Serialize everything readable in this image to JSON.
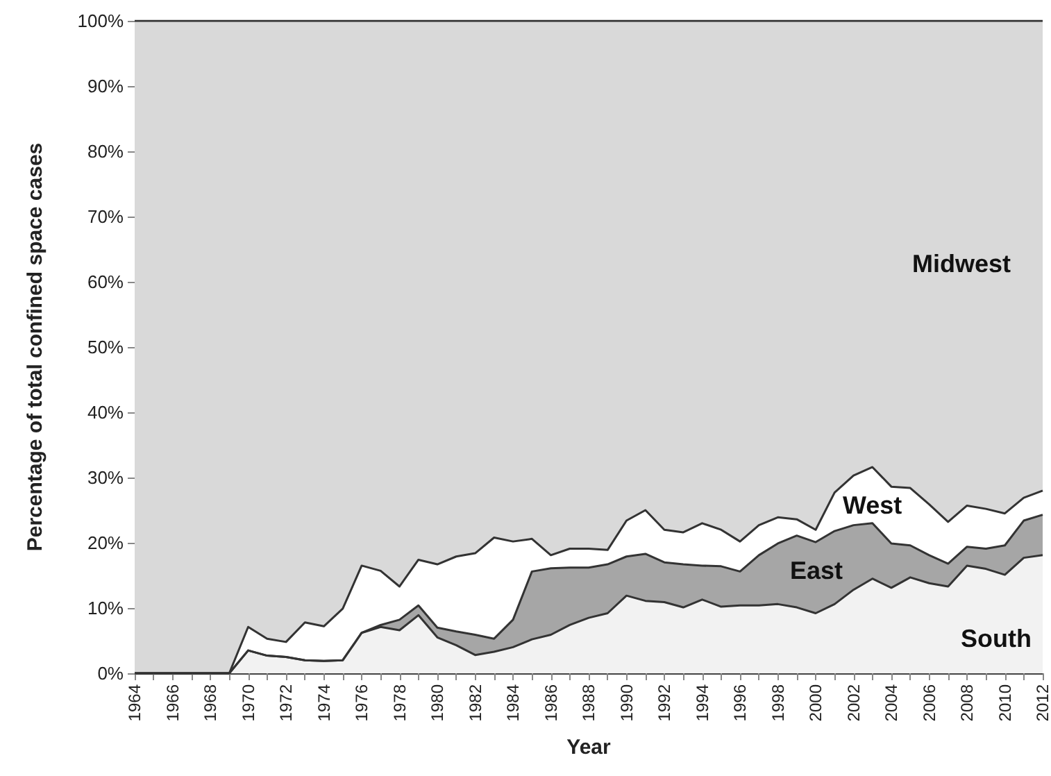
{
  "chart_data": {
    "type": "area",
    "stacked": true,
    "xlabel": "Year",
    "ylabel": "Percentage of total confined space cases",
    "categories": [
      "1964",
      null,
      "1966",
      null,
      "1968",
      null,
      "1970",
      null,
      "1972",
      null,
      "1974",
      null,
      "1976",
      null,
      "1978",
      null,
      "1980",
      null,
      "1982",
      null,
      "1984",
      null,
      "1986",
      null,
      "1988",
      null,
      "1990",
      null,
      "1992",
      null,
      "1994",
      null,
      "1996",
      null,
      "1998",
      null,
      "2000",
      null,
      "2002",
      null,
      "2004",
      null,
      "2006",
      null,
      "2008",
      null,
      "2010",
      null,
      "2012"
    ],
    "ylim": [
      0,
      100
    ],
    "yticks": [
      {
        "value": 0,
        "label": "0%"
      },
      {
        "value": 10,
        "label": "10%"
      },
      {
        "value": 20,
        "label": "20%"
      },
      {
        "value": 30,
        "label": "30%"
      },
      {
        "value": 40,
        "label": "40%"
      },
      {
        "value": 50,
        "label": "50%"
      },
      {
        "value": 60,
        "label": "60%"
      },
      {
        "value": 70,
        "label": "70%"
      },
      {
        "value": 80,
        "label": "80%"
      },
      {
        "value": 90,
        "label": "90%"
      },
      {
        "value": 100,
        "label": "100%"
      }
    ],
    "series": [
      {
        "name": "South",
        "color": "#f2f2f2",
        "values": [
          0,
          0,
          0,
          0,
          0,
          0,
          3.5,
          2.7,
          2.5,
          2.0,
          1.9,
          2.0,
          6.2,
          7.1,
          6.6,
          8.9,
          5.5,
          4.3,
          2.8,
          3.3,
          4.0,
          5.2,
          5.9,
          7.4,
          8.5,
          9.2,
          11.9,
          11.1,
          10.9,
          10.1,
          11.3,
          10.2,
          10.4,
          10.4,
          10.6,
          10.1,
          9.2,
          10.6,
          12.8,
          14.5,
          13.1,
          14.7,
          13.8,
          13.3,
          16.5,
          16.0,
          15.1,
          17.7,
          18.1
        ]
      },
      {
        "name": "East",
        "color": "#a6a6a6",
        "values": [
          0,
          0,
          0,
          0,
          0,
          0,
          0,
          0,
          0,
          0,
          0,
          0,
          0,
          0.3,
          1.6,
          1.5,
          1.5,
          2.1,
          3.1,
          2.0,
          4.2,
          10.4,
          10.2,
          8.8,
          7.7,
          7.5,
          6.0,
          7.2,
          6.1,
          6.6,
          5.2,
          6.2,
          5.2,
          7.7,
          9.3,
          11.0,
          10.9,
          11.2,
          9.9,
          8.5,
          6.8,
          4.9,
          4.3,
          3.5,
          2.9,
          3.1,
          4.5,
          5.7,
          6.2
        ]
      },
      {
        "name": "West",
        "color": "#ffffff",
        "values": [
          0,
          0,
          0,
          0,
          0,
          0,
          3.6,
          2.6,
          2.3,
          5.8,
          5.3,
          7.9,
          10.3,
          8.3,
          5.1,
          7.0,
          9.7,
          11.5,
          12.5,
          15.5,
          12.0,
          5.0,
          2.0,
          2.9,
          2.9,
          2.2,
          5.5,
          6.7,
          5.0,
          4.9,
          6.5,
          5.6,
          4.6,
          4.6,
          4.0,
          2.5,
          1.9,
          5.9,
          7.6,
          8.6,
          8.7,
          8.8,
          7.8,
          6.4,
          6.3,
          6.1,
          4.9,
          3.5,
          3.7
        ]
      },
      {
        "name": "Midwest",
        "color": "#d9d9d9",
        "values": [
          100,
          100,
          100,
          100,
          100,
          100,
          92.9,
          94.7,
          95.2,
          92.2,
          92.8,
          90.1,
          83.5,
          84.3,
          86.7,
          82.6,
          83.3,
          82.1,
          81.6,
          79.2,
          79.8,
          79.4,
          81.9,
          80.9,
          80.9,
          81.1,
          76.6,
          75.0,
          78.0,
          78.4,
          77.0,
          78.0,
          79.8,
          77.3,
          76.1,
          76.4,
          78.0,
          72.3,
          69.7,
          68.4,
          71.4,
          71.6,
          74.1,
          76.8,
          74.3,
          74.8,
          75.5,
          73.1,
          72.0
        ]
      }
    ]
  }
}
